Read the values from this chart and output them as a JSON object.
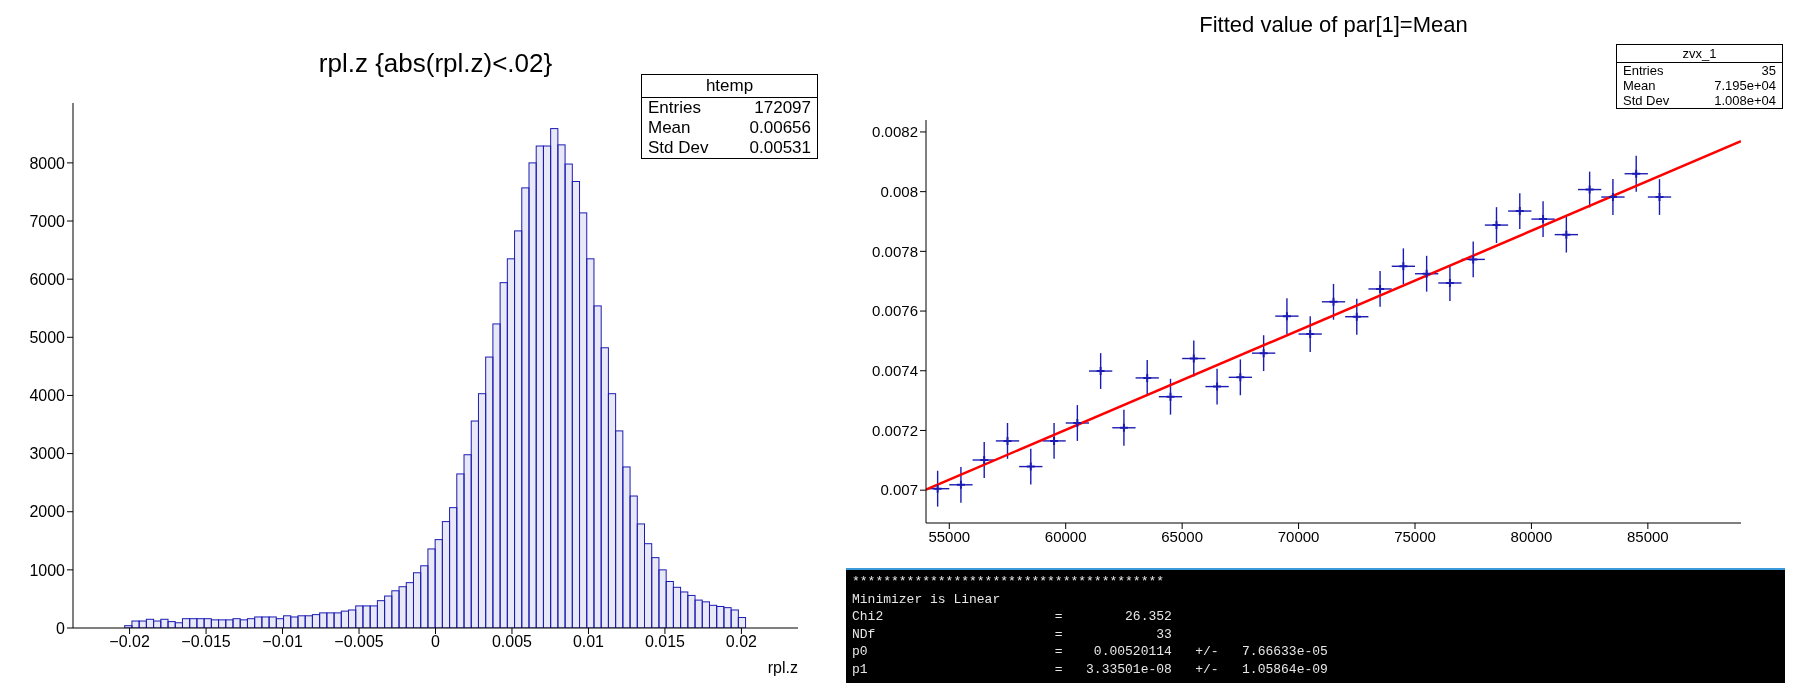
{
  "chart_data": [
    {
      "type": "histogram",
      "title": "rpl.z {abs(rpl.z)<.02}",
      "xlabel": "rpl.z",
      "color": "#1c1cb4",
      "bins": [
        -0.020296,
        -0.019824,
        -0.019352,
        -0.01888,
        -0.018408,
        -0.017936,
        -0.017464,
        -0.016992,
        -0.01652,
        -0.016048,
        -0.015576,
        -0.015104,
        -0.014632,
        -0.01416,
        -0.013688,
        -0.013216,
        -0.012744,
        -0.012272,
        -0.0118,
        -0.011328,
        -0.010856,
        -0.010384,
        -0.009912,
        -0.00944,
        -0.008968,
        -0.008496,
        -0.008024,
        -0.007552,
        -0.00708,
        -0.006608,
        -0.006136,
        -0.005664,
        -0.005192,
        -0.00472,
        -0.004248,
        -0.003776,
        -0.003304,
        -0.002832,
        -0.00236,
        -0.001888,
        -0.001416,
        -0.000944,
        -0.000472,
        0,
        0.000472,
        0.000944,
        0.001416,
        0.001888,
        0.00236,
        0.002832,
        0.003304,
        0.003776,
        0.004248,
        0.00472,
        0.005192,
        0.005664,
        0.006136,
        0.006608,
        0.00708,
        0.007552,
        0.008024,
        0.008496,
        0.008968,
        0.00944,
        0.009912,
        0.010384,
        0.010856,
        0.011328,
        0.0118,
        0.012272,
        0.012744,
        0.013216,
        0.013688,
        0.01416,
        0.014632,
        0.015104,
        0.015576,
        0.016048,
        0.01652,
        0.016992,
        0.017464,
        0.017936,
        0.018408,
        0.01888,
        0.019352,
        0.019824,
        0.020296
      ],
      "values": [
        40,
        120,
        120,
        150,
        120,
        150,
        110,
        90,
        160,
        160,
        160,
        160,
        140,
        140,
        140,
        160,
        140,
        160,
        190,
        190,
        190,
        160,
        210,
        190,
        210,
        210,
        230,
        260,
        260,
        260,
        290,
        310,
        380,
        380,
        380,
        470,
        550,
        640,
        710,
        780,
        950,
        1070,
        1360,
        1520,
        1830,
        2070,
        2650,
        2980,
        3560,
        4030,
        4660,
        5230,
        5940,
        6350,
        6830,
        7570,
        8000,
        8290,
        8290,
        8590,
        8310,
        7980,
        7680,
        7140,
        6350,
        5540,
        4820,
        4030,
        3390,
        2770,
        2270,
        1790,
        1450,
        1210,
        1000,
        800,
        700,
        620,
        560,
        480,
        450,
        390,
        370,
        350,
        310,
        180
      ],
      "xlim": [
        -0.0237,
        0.0237
      ],
      "xticks": [
        -0.02,
        -0.015,
        -0.01,
        -0.005,
        0,
        0.005,
        0.01,
        0.015,
        0.02
      ],
      "ylim": [
        0,
        9030
      ],
      "yticks": [
        0,
        1000,
        2000,
        3000,
        4000,
        5000,
        6000,
        7000,
        8000
      ],
      "annotations": [
        "htemp",
        "Entries",
        "172097",
        "Mean",
        "0.00656",
        "Std Dev",
        "0.00531"
      ]
    },
    {
      "type": "scatter",
      "title": "Fitted value of par[1]=Mean",
      "series": [
        {
          "type": "scatter",
          "color": "#1c1cb4",
          "marker": "cross",
          "x": [
            54500,
            55500,
            56500,
            57500,
            58500,
            59500,
            60500,
            61500,
            62500,
            63500,
            64500,
            65500,
            66500,
            67500,
            68500,
            69500,
            70500,
            71500,
            72500,
            73500,
            74500,
            75500,
            76500,
            77500,
            78500,
            79500,
            80500,
            81500,
            82500,
            83500,
            84500,
            85500
          ],
          "values": [
            0.007005,
            0.007018,
            0.007101,
            0.007165,
            0.007079,
            0.007165,
            0.007225,
            0.007399,
            0.007209,
            0.007376,
            0.007313,
            0.007441,
            0.007347,
            0.007378,
            0.007459,
            0.007583,
            0.007523,
            0.007631,
            0.007581,
            0.007674,
            0.00775,
            0.007725,
            0.007694,
            0.007773,
            0.007888,
            0.007935,
            0.007908,
            0.007856,
            0.008007,
            0.007982,
            0.00806,
            0.007982
          ],
          "errors": [
            6e-05,
            6e-05,
            6e-05,
            6e-05,
            6e-05,
            6e-05,
            6e-05,
            6e-05,
            6e-05,
            6e-05,
            6e-05,
            6e-05,
            6e-05,
            6e-05,
            6e-05,
            6e-05,
            6e-05,
            6e-05,
            6e-05,
            6e-05,
            6e-05,
            6e-05,
            6e-05,
            6e-05,
            6e-05,
            6e-05,
            6e-05,
            6e-05,
            6e-05,
            6e-05,
            6e-05,
            6e-05
          ],
          "xerrors": [
            500,
            500,
            500,
            500,
            500,
            500,
            500,
            500,
            500,
            500,
            500,
            500,
            500,
            500,
            500,
            500,
            500,
            500,
            500,
            500,
            500,
            500,
            500,
            500,
            500,
            500,
            500,
            500,
            500,
            500,
            500,
            500
          ]
        },
        {
          "type": "line",
          "color": "#ff0000",
          "line_style": "solid",
          "x": [
            54000,
            89000
          ],
          "values": [
            0.007002,
            0.008169
          ]
        }
      ],
      "xlim": [
        54000,
        89000
      ],
      "xticks": [
        55000,
        60000,
        65000,
        70000,
        75000,
        80000,
        85000
      ],
      "ylim": [
        0.00689,
        0.00824
      ],
      "yticks": [
        0.007,
        0.0072,
        0.0074,
        0.0076,
        0.0078,
        0.008,
        0.0082
      ],
      "annotations": [
        "zvx_1",
        "Entries",
        "35",
        "Mean",
        "7.195e+04",
        "Std Dev",
        "1.008e+04"
      ]
    },
    {
      "type": "other",
      "annotations": [
        "****************************************",
        "Minimizer is Linear",
        "Chi2                      =        26.352",
        "NDf                       =            33",
        "p0                        =    0.00520114   +/-   7.66633e-05",
        "p1                        =   3.33501e-08   +/-   1.05864e-09"
      ]
    }
  ]
}
